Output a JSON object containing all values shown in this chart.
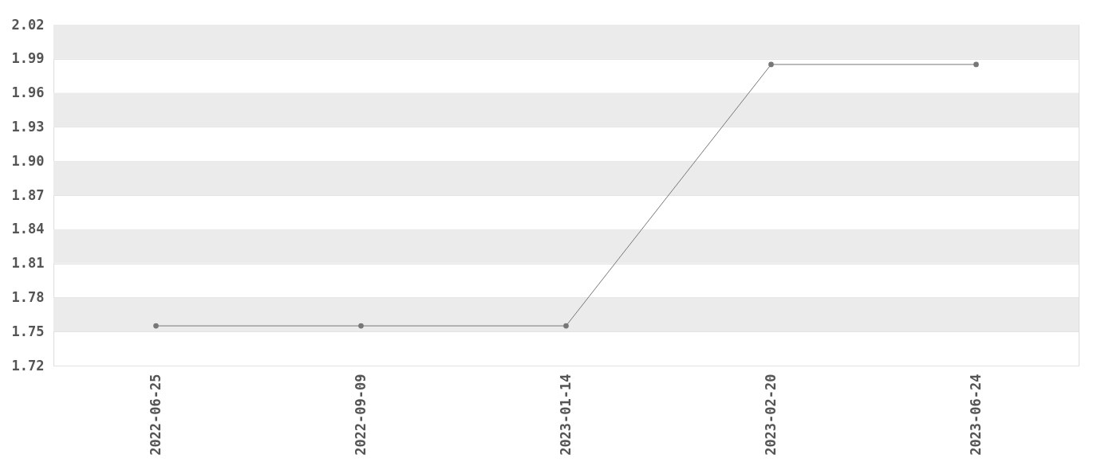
{
  "chart_data": {
    "type": "line",
    "categories": [
      "2022-06-25",
      "2022-09-09",
      "2023-01-14",
      "2023-02-20",
      "2023-06-24"
    ],
    "series": [
      {
        "color": "#777777",
        "values": [
          1.755,
          1.755,
          1.755,
          1.985,
          1.985
        ]
      }
    ],
    "ylim": [
      1.72,
      2.02
    ],
    "yticks": [
      1.72,
      1.75,
      1.78,
      1.81,
      1.84,
      1.87,
      {
        "value": 1.9,
        "label": "1.90"
      },
      1.93,
      1.96,
      1.99,
      2.02
    ],
    "grid": true,
    "marker": "circle"
  }
}
